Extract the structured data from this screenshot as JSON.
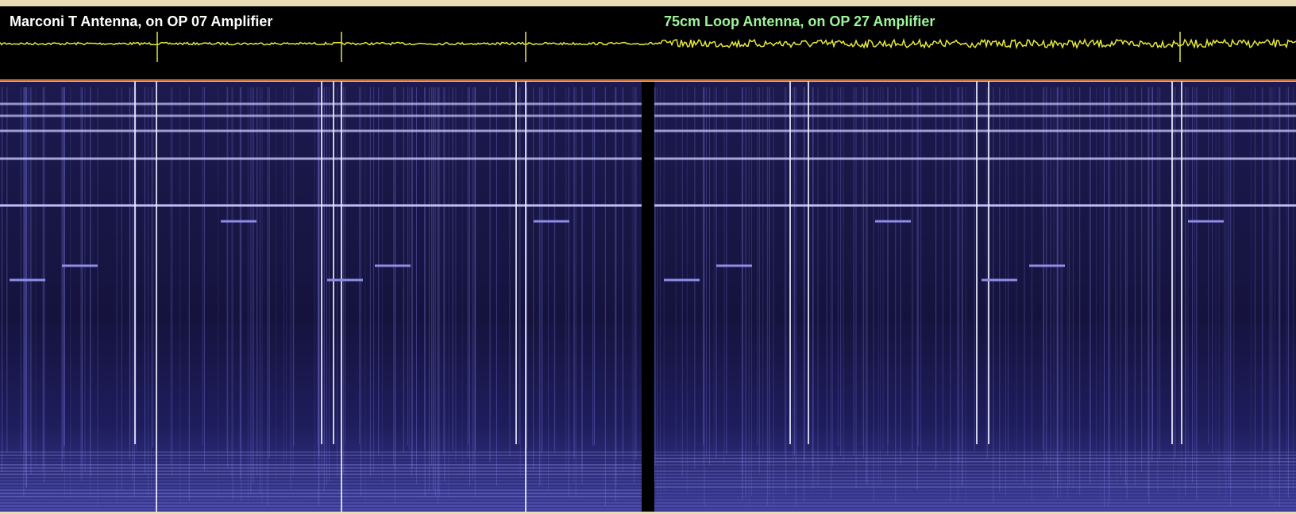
{
  "panels": [
    {
      "label": "Marconi T Antenna, on OP 07 Amplifier"
    },
    {
      "label": "75cm Loop Antenna, on OP 27 Amplifier"
    }
  ]
}
